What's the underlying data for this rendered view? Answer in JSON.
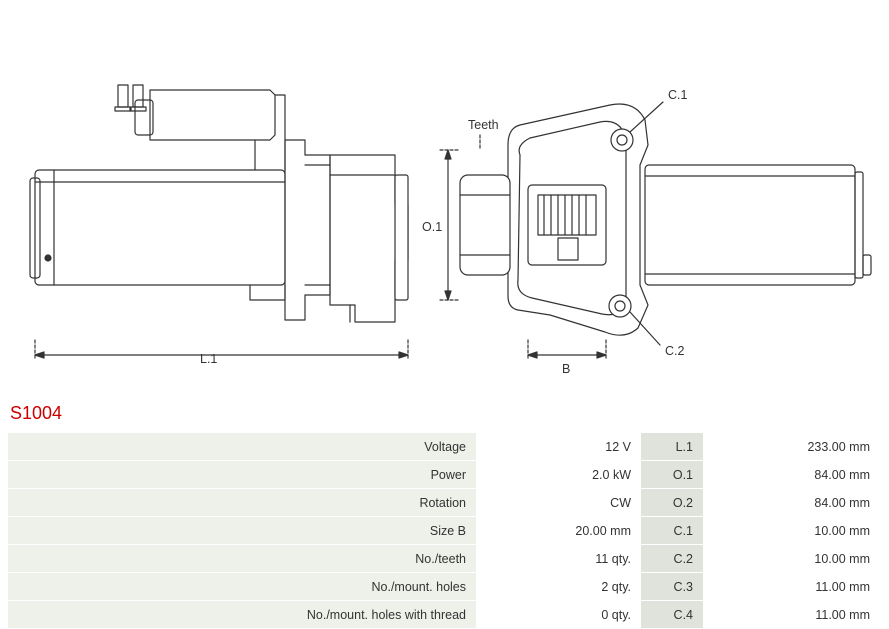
{
  "part_number": "S1004",
  "title_color": "#cc0000",
  "background_color": "#ffffff",
  "row_bg": "#eef1ea",
  "row_bg_darker": "#e0e3db",
  "font_size_table": 12.5,
  "diagram": {
    "labels": {
      "L1": "L.1",
      "O1": "O.1",
      "B": "B",
      "Teeth": "Teeth",
      "C1": "C.1",
      "C2": "C.2"
    },
    "stroke_color": "#333333",
    "stroke_width": 1.2
  },
  "spec_rows": [
    {
      "label_left": "Voltage",
      "val_left": "12 V",
      "label_right": "L.1",
      "val_right": "233.00 mm"
    },
    {
      "label_left": "Power",
      "val_left": "2.0 kW",
      "label_right": "O.1",
      "val_right": "84.00 mm"
    },
    {
      "label_left": "Rotation",
      "val_left": "CW",
      "label_right": "O.2",
      "val_right": "84.00 mm"
    },
    {
      "label_left": "Size B",
      "val_left": "20.00 mm",
      "label_right": "C.1",
      "val_right": "10.00 mm"
    },
    {
      "label_left": "No./teeth",
      "val_left": "11 qty.",
      "label_right": "C.2",
      "val_right": "10.00 mm"
    },
    {
      "label_left": "No./mount. holes",
      "val_left": "2 qty.",
      "label_right": "C.3",
      "val_right": "11.00 mm"
    },
    {
      "label_left": "No./mount. holes with thread",
      "val_left": "0 qty.",
      "label_right": "C.4",
      "val_right": "11.00 mm"
    }
  ]
}
